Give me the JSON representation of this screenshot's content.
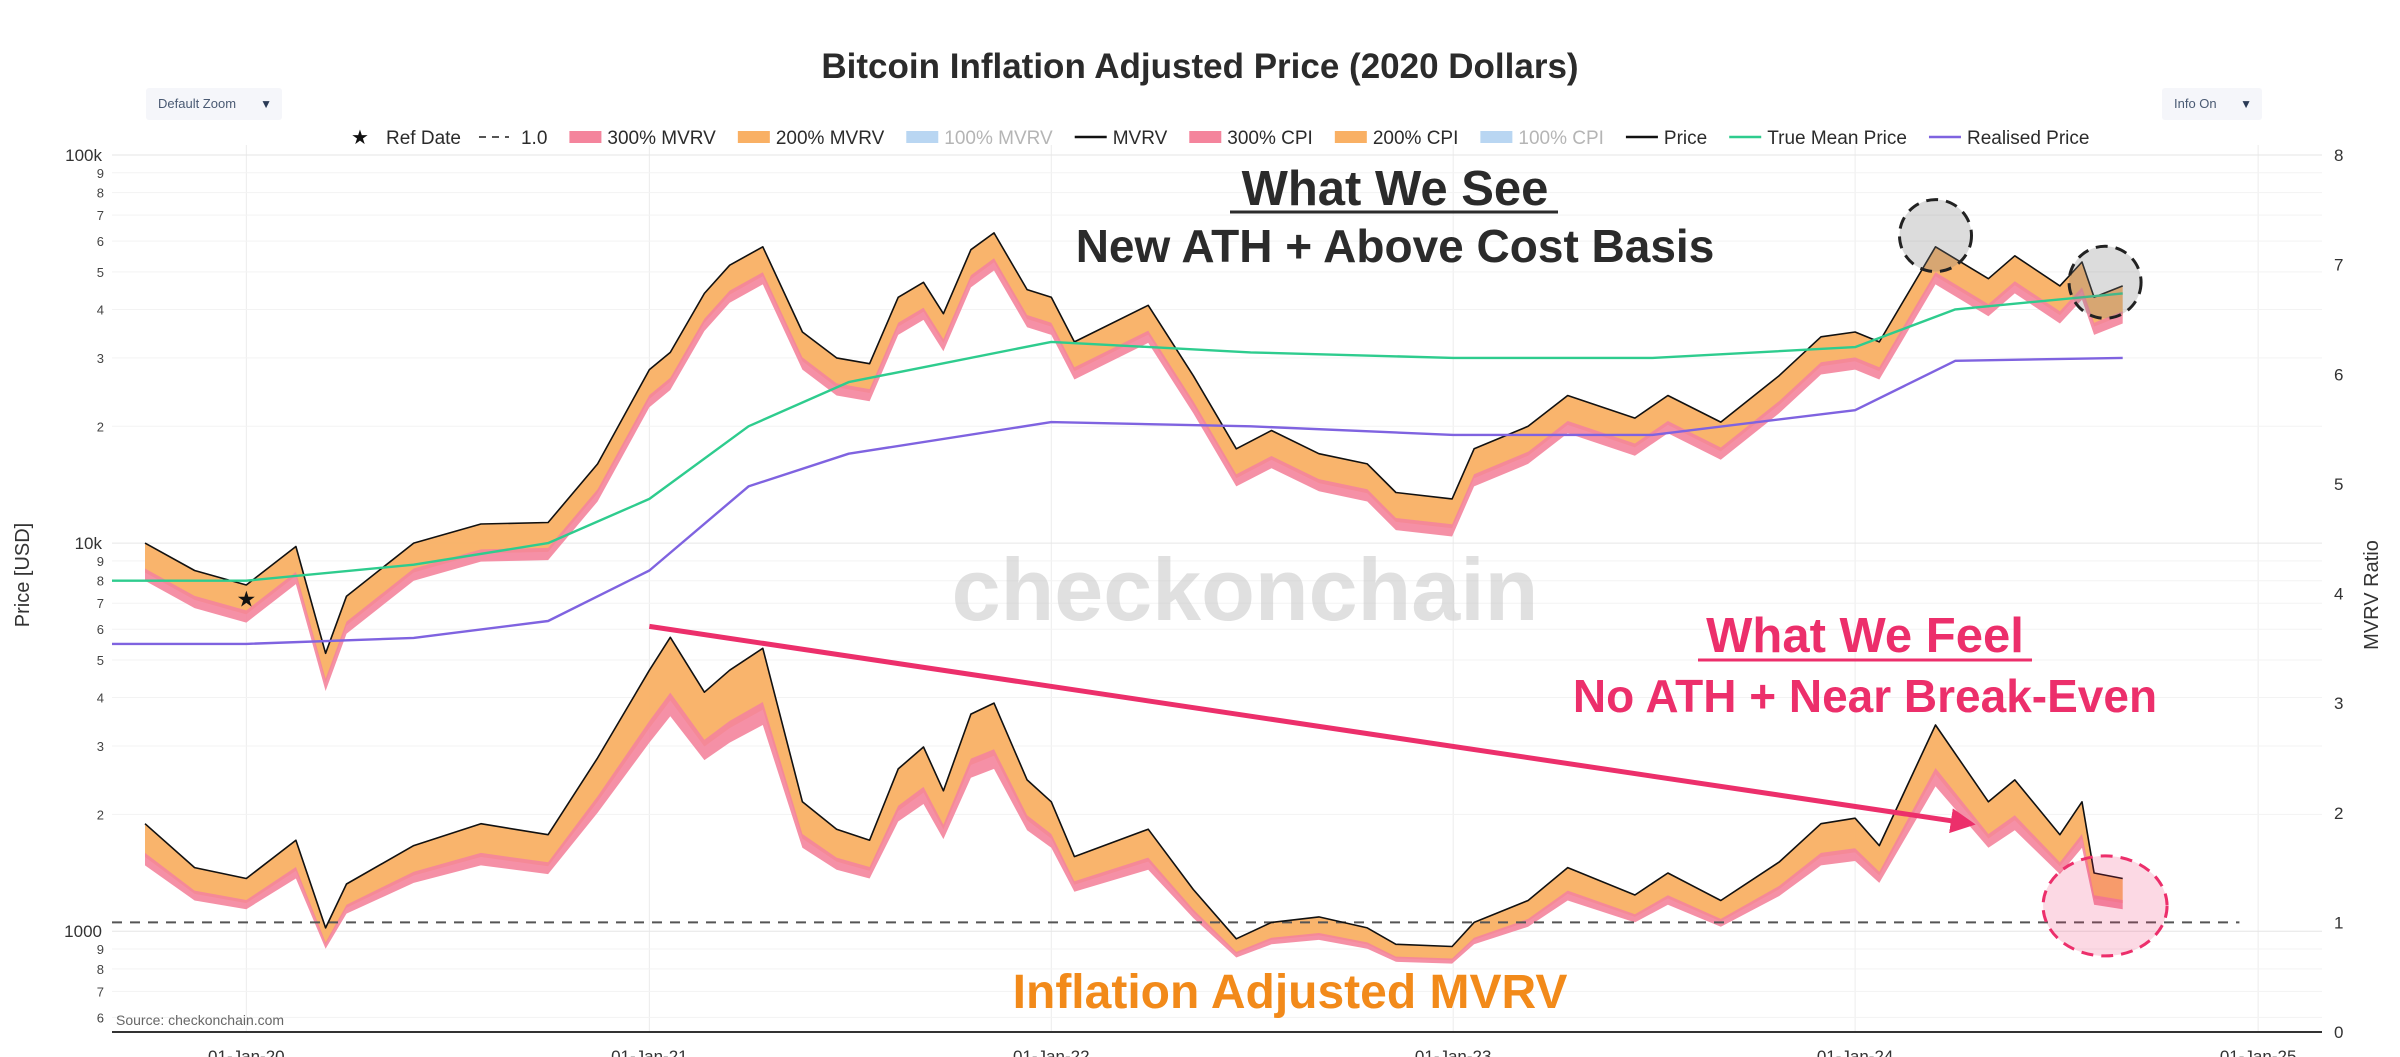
{
  "controls": {
    "zoom_label": "Default Zoom",
    "info_label": "Info On",
    "dropdown_glyph": "▼"
  },
  "chart_data": {
    "type": "line",
    "title": "Bitcoin Inflation Adjusted Price (2020 Dollars)",
    "ylabel": "Price [USD]",
    "y2label": "MVRV Ratio",
    "yscale": "log",
    "ylim": [
      550,
      100000
    ],
    "y2lim": [
      0,
      8
    ],
    "xlim": [
      "2019-09-01",
      "2025-02-28"
    ],
    "x_ticks": [
      "01-Jan-20",
      "01-Jan-21",
      "01-Jan-22",
      "01-Jan-23",
      "01-Jan-24",
      "01-Jan-25"
    ],
    "y_major_ticks": [
      {
        "value": 1000,
        "label": "1000"
      },
      {
        "value": 10000,
        "label": "10k"
      },
      {
        "value": 100000,
        "label": "100k"
      }
    ],
    "y_minor_ticks": [
      {
        "value": 600,
        "label": "6"
      },
      {
        "value": 700,
        "label": "7"
      },
      {
        "value": 800,
        "label": "8"
      },
      {
        "value": 900,
        "label": "9"
      },
      {
        "value": 2000,
        "label": "2"
      },
      {
        "value": 3000,
        "label": "3"
      },
      {
        "value": 4000,
        "label": "4"
      },
      {
        "value": 5000,
        "label": "5"
      },
      {
        "value": 6000,
        "label": "6"
      },
      {
        "value": 7000,
        "label": "7"
      },
      {
        "value": 8000,
        "label": "8"
      },
      {
        "value": 9000,
        "label": "9"
      },
      {
        "value": 20000,
        "label": "2"
      },
      {
        "value": 30000,
        "label": "3"
      },
      {
        "value": 40000,
        "label": "4"
      },
      {
        "value": 50000,
        "label": "5"
      },
      {
        "value": 60000,
        "label": "6"
      },
      {
        "value": 70000,
        "label": "7"
      },
      {
        "value": 80000,
        "label": "8"
      },
      {
        "value": 90000,
        "label": "9"
      }
    ],
    "y2_ticks": [
      "0",
      "1",
      "2",
      "3",
      "4",
      "5",
      "6",
      "7",
      "8"
    ],
    "grid": true,
    "legend_position": "top",
    "legend": [
      {
        "name": "Ref Date",
        "symbol": "star",
        "color": "#111111"
      },
      {
        "name": "1.0",
        "symbol": "dash",
        "color": "#555555"
      },
      {
        "name": "300% MVRV",
        "symbol": "band",
        "color": "#f4849c"
      },
      {
        "name": "200% MVRV",
        "symbol": "band",
        "color": "#f9b064"
      },
      {
        "name": "100% MVRV",
        "symbol": "band",
        "color": "#b9d6f2",
        "muted": true
      },
      {
        "name": "MVRV",
        "symbol": "line",
        "color": "#111111"
      },
      {
        "name": "300% CPI",
        "symbol": "band",
        "color": "#f4849c"
      },
      {
        "name": "200% CPI",
        "symbol": "band",
        "color": "#f9b064"
      },
      {
        "name": "100% CPI",
        "symbol": "band",
        "color": "#b9d6f2",
        "muted": true
      },
      {
        "name": "Price",
        "symbol": "line",
        "color": "#111111"
      },
      {
        "name": "True Mean Price",
        "symbol": "line",
        "color": "#2ecc8e"
      },
      {
        "name": "Realised Price",
        "symbol": "line",
        "color": "#7f63e0"
      }
    ],
    "colors": {
      "price": "#111111",
      "true_mean": "#2ecc8e",
      "realised": "#7f63e0",
      "band_200": "#f9b064",
      "band_300": "#f4849c",
      "ref_line": "#555555",
      "annotation_see": "#2b2b2b",
      "annotation_feel": "#ec2f6b",
      "annotation_mvrv": "#f28a1a",
      "watermark": "#cccccc"
    },
    "ref_date": {
      "x": "2020-01-01",
      "y": 7200
    },
    "mvrv_reference_level": 1.0,
    "series": [
      {
        "name": "Price",
        "axis": "y",
        "x": [
          "2019-10-01",
          "2019-11-15",
          "2020-01-01",
          "2020-02-15",
          "2020-03-13",
          "2020-04-01",
          "2020-06-01",
          "2020-08-01",
          "2020-10-01",
          "2020-11-15",
          "2021-01-01",
          "2021-01-20",
          "2021-02-20",
          "2021-03-15",
          "2021-04-14",
          "2021-05-20",
          "2021-06-20",
          "2021-07-20",
          "2021-08-15",
          "2021-09-07",
          "2021-09-25",
          "2021-10-20",
          "2021-11-10",
          "2021-12-10",
          "2022-01-01",
          "2022-01-22",
          "2022-03-30",
          "2022-05-10",
          "2022-06-18",
          "2022-07-20",
          "2022-09-01",
          "2022-10-15",
          "2022-11-10",
          "2022-12-31",
          "2023-01-20",
          "2023-03-10",
          "2023-04-15",
          "2023-06-15",
          "2023-07-15",
          "2023-09-01",
          "2023-10-24",
          "2023-12-01",
          "2024-01-01",
          "2024-01-23",
          "2024-03-14",
          "2024-05-01",
          "2024-05-25",
          "2024-07-05",
          "2024-07-25",
          "2024-08-05",
          "2024-08-31"
        ],
        "y": [
          10000,
          8500,
          7800,
          9800,
          5200,
          7300,
          10000,
          11200,
          11300,
          16000,
          28000,
          31000,
          44000,
          52000,
          58000,
          35000,
          30000,
          29000,
          43000,
          47000,
          39000,
          57000,
          63000,
          45000,
          43000,
          33000,
          41000,
          27000,
          17500,
          19500,
          17000,
          16000,
          13500,
          13000,
          17500,
          20000,
          24000,
          21000,
          24000,
          20500,
          27000,
          34000,
          35000,
          33000,
          58000,
          48000,
          55000,
          46000,
          53000,
          43000,
          46000
        ]
      },
      {
        "name": "True Mean Price",
        "axis": "y",
        "x": [
          "2019-09-01",
          "2020-01-01",
          "2020-06-01",
          "2020-10-01",
          "2021-01-01",
          "2021-04-01",
          "2021-07-01",
          "2022-01-01",
          "2022-07-01",
          "2023-01-01",
          "2023-07-01",
          "2024-01-01",
          "2024-04-01",
          "2024-08-31"
        ],
        "y": [
          8000,
          8000,
          8800,
          10000,
          13000,
          20000,
          26000,
          33000,
          31000,
          30000,
          30000,
          32000,
          40000,
          44000
        ]
      },
      {
        "name": "Realised Price",
        "axis": "y",
        "x": [
          "2019-09-01",
          "2020-01-01",
          "2020-06-01",
          "2020-10-01",
          "2021-01-01",
          "2021-04-01",
          "2021-07-01",
          "2022-01-01",
          "2022-07-01",
          "2023-01-01",
          "2023-07-01",
          "2024-01-01",
          "2024-04-01",
          "2024-08-31"
        ],
        "y": [
          5500,
          5500,
          5700,
          6300,
          8500,
          14000,
          17000,
          20500,
          20000,
          19000,
          19000,
          22000,
          29500,
          30000
        ]
      },
      {
        "name": "MVRV",
        "axis": "y2",
        "x": [
          "2019-10-01",
          "2019-11-15",
          "2020-01-01",
          "2020-02-15",
          "2020-03-13",
          "2020-04-01",
          "2020-06-01",
          "2020-08-01",
          "2020-10-01",
          "2020-11-15",
          "2021-01-01",
          "2021-01-20",
          "2021-02-20",
          "2021-03-15",
          "2021-04-14",
          "2021-05-20",
          "2021-06-20",
          "2021-07-20",
          "2021-08-15",
          "2021-09-07",
          "2021-09-25",
          "2021-10-20",
          "2021-11-10",
          "2021-12-10",
          "2022-01-01",
          "2022-01-22",
          "2022-03-30",
          "2022-05-10",
          "2022-06-18",
          "2022-07-20",
          "2022-09-01",
          "2022-10-15",
          "2022-11-10",
          "2022-12-31",
          "2023-01-20",
          "2023-03-10",
          "2023-04-15",
          "2023-06-15",
          "2023-07-15",
          "2023-09-01",
          "2023-10-24",
          "2023-12-01",
          "2024-01-01",
          "2024-01-23",
          "2024-03-14",
          "2024-05-01",
          "2024-05-25",
          "2024-07-05",
          "2024-07-25",
          "2024-08-05",
          "2024-08-31"
        ],
        "y": [
          1.9,
          1.5,
          1.4,
          1.75,
          0.95,
          1.35,
          1.7,
          1.9,
          1.8,
          2.5,
          3.3,
          3.6,
          3.1,
          3.3,
          3.5,
          2.1,
          1.85,
          1.75,
          2.4,
          2.6,
          2.2,
          2.9,
          3.0,
          2.3,
          2.1,
          1.6,
          1.85,
          1.3,
          0.85,
          1.0,
          1.05,
          0.95,
          0.8,
          0.78,
          1.0,
          1.2,
          1.5,
          1.25,
          1.45,
          1.2,
          1.55,
          1.9,
          1.95,
          1.7,
          2.8,
          2.1,
          2.3,
          1.8,
          2.1,
          1.45,
          1.4
        ]
      }
    ],
    "annotations": {
      "see_title": "What We See",
      "see_subtitle": "New ATH + Above Cost Basis",
      "feel_title": "What We Feel",
      "feel_subtitle": "No ATH + Near Break-Even",
      "mvrv_label": "Inflation Adjusted MVRV",
      "watermark": "checkonchain",
      "source": "Source: checkonchain.com",
      "arrow_from": {
        "x": "2021-01-01",
        "y2": 3.7
      },
      "arrow_to": {
        "x": "2024-04-15",
        "y2": 1.9
      },
      "see_circles": [
        {
          "x": "2024-03-14",
          "y": 62000
        },
        {
          "x": "2024-08-15",
          "y": 47000
        }
      ],
      "feel_circle": {
        "x": "2024-08-15",
        "y2": 1.15
      }
    }
  }
}
